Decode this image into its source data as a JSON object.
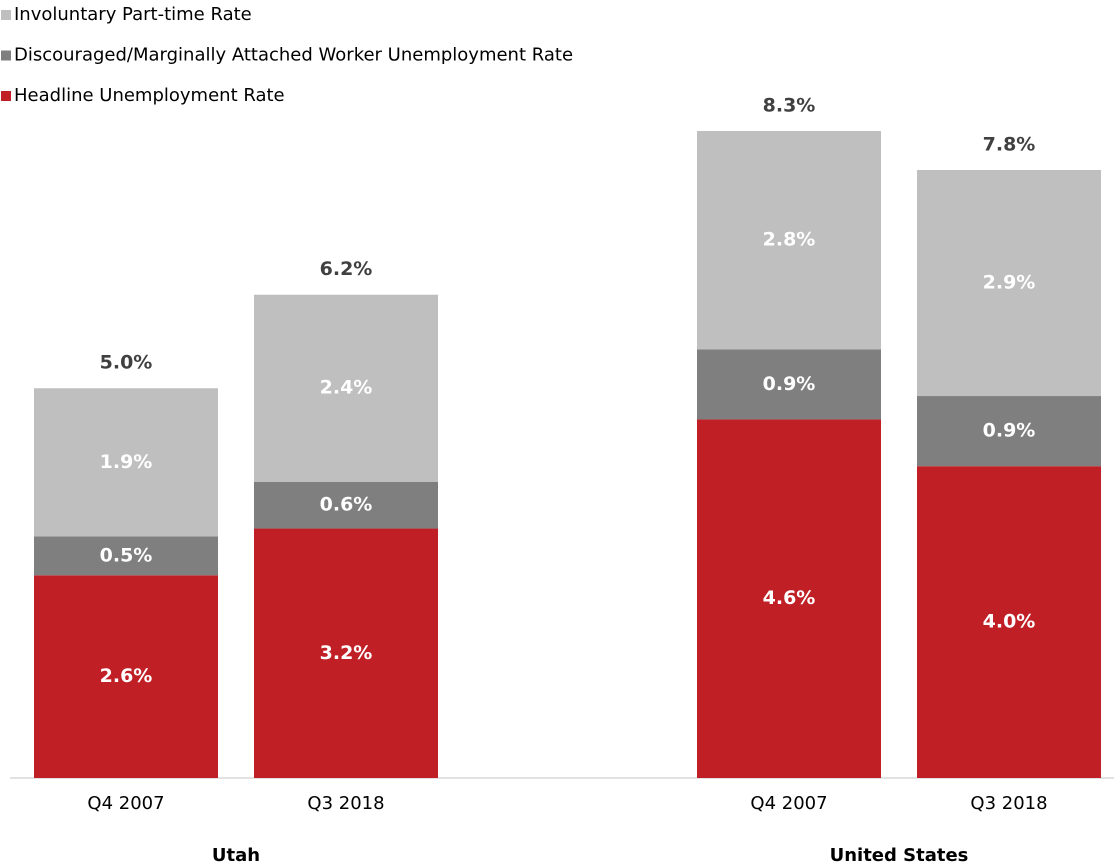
{
  "chart_data": {
    "type": "stacked-bar",
    "groups": [
      {
        "name": "Utah",
        "categories": [
          "Q4 2007",
          "Q3 2018"
        ]
      },
      {
        "name": "United States",
        "categories": [
          "Q4 2007",
          "Q3 2018"
        ]
      }
    ],
    "series": [
      {
        "name": "Headline Unemployment Rate",
        "color": "#c01f26",
        "values": [
          2.6,
          3.2,
          4.6,
          4.0
        ],
        "value_labels": [
          "2.6%",
          "3.2%",
          "4.6%",
          "4.0%"
        ]
      },
      {
        "name": "Discouraged/Marginally Attached Worker Unemployment Rate",
        "color": "#7f7f7f",
        "values": [
          0.5,
          0.6,
          0.9,
          0.9
        ],
        "value_labels": [
          "0.5%",
          "0.6%",
          "0.9%",
          "0.9%"
        ]
      },
      {
        "name": "Involuntary Part-time Rate",
        "color": "#bfbfbf",
        "values": [
          1.9,
          2.4,
          2.8,
          2.9
        ],
        "value_labels": [
          "1.9%",
          "2.4%",
          "2.8%",
          "2.9%"
        ]
      }
    ],
    "totals": [
      5.0,
      6.2,
      8.3,
      7.8
    ],
    "total_labels": [
      "5.0%",
      "6.2%",
      "8.3%",
      "7.8%"
    ],
    "legend": "top-left"
  }
}
